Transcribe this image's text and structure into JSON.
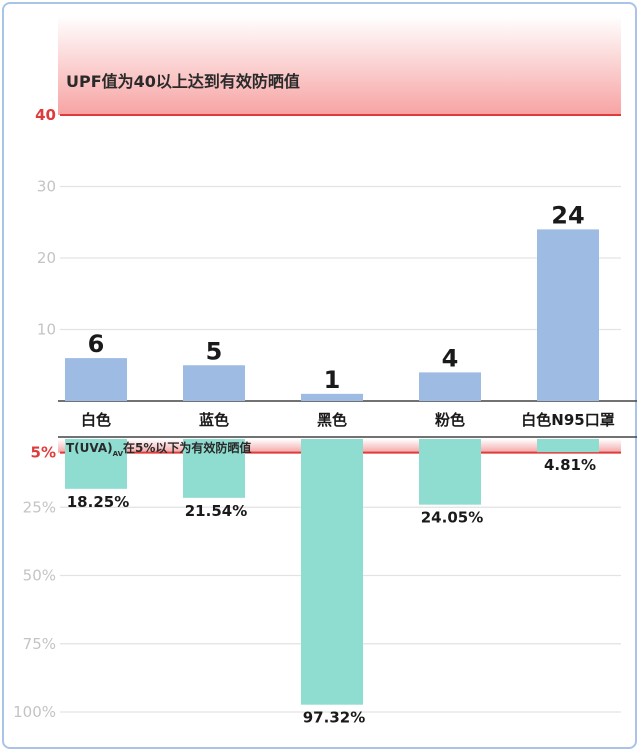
{
  "chart_data": [
    {
      "type": "bar",
      "title": "UPF值为40以上达到有效防晒值",
      "categories": [
        "白色",
        "蓝色",
        "黑色",
        "粉色",
        "白色N95口罩"
      ],
      "values": [
        6,
        5,
        1,
        4,
        24
      ],
      "value_labels": [
        "6",
        "5",
        "1",
        "4",
        "24"
      ],
      "yticks": [
        "40",
        "30",
        "20",
        "10"
      ],
      "ylim": [
        0,
        40
      ],
      "threshold": 40,
      "grid": true,
      "colors": {
        "bar": "#9dbbe3",
        "threshold": "#e03b3b",
        "band_top": "#ffffff",
        "band_bottom": "#f7a3a3"
      }
    },
    {
      "type": "bar",
      "orientation": "downward",
      "title": "T(UVA)",
      "title_sub": "AV",
      "title_rest": "在5%以下为有效防晒值",
      "categories": [
        "白色",
        "蓝色",
        "黑色",
        "粉色",
        "白色N95口罩"
      ],
      "values": [
        18.25,
        21.54,
        97.32,
        24.05,
        4.81
      ],
      "value_labels": [
        "18.25%",
        "21.54%",
        "97.32%",
        "24.05%",
        "4.81%"
      ],
      "yticks": [
        "5%",
        "25%",
        "50%",
        "75%",
        "100%"
      ],
      "ylim": [
        0,
        100
      ],
      "threshold": 5,
      "grid": true,
      "colors": {
        "bar": "#8fdcd0",
        "threshold": "#e03b3b"
      }
    }
  ]
}
